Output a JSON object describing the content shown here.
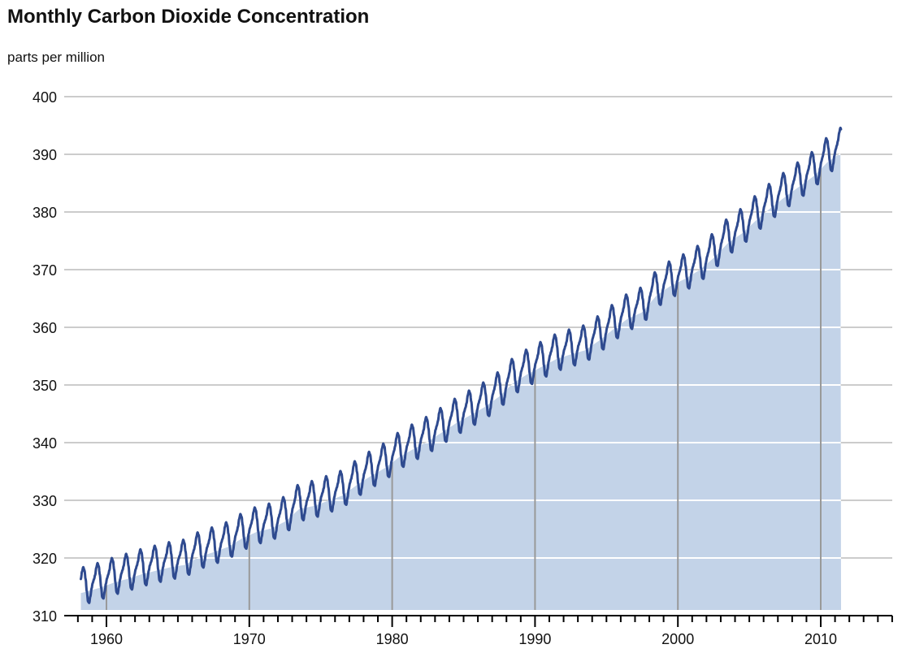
{
  "chart_data": {
    "type": "area",
    "title": "Monthly Carbon Dioxide Concentration",
    "subtitle": "parts per million",
    "xlabel": "",
    "ylabel": "",
    "xlim": [
      1955.2,
      2016.0
    ],
    "ylim": [
      310,
      400
    ],
    "yticks": [
      310,
      320,
      330,
      340,
      350,
      360,
      370,
      380,
      390,
      400
    ],
    "ytick_labels": [
      "310",
      "320",
      "330",
      "340",
      "350",
      "360",
      "370",
      "380",
      "390",
      "400"
    ],
    "xticks_major": [
      1960,
      1970,
      1980,
      1990,
      2000,
      2010
    ],
    "xtick_labels": [
      "1960",
      "1970",
      "1980",
      "1990",
      "2000",
      "2010"
    ],
    "xticks_minor_step": 1,
    "grid": true,
    "legend": "none",
    "colors": {
      "line": "#2e4a8f",
      "area": "#c3d3e8",
      "gridline_outside": "#cccccc",
      "gridline_inside": "#ffffff",
      "vertical_gridline": "#999999",
      "axis": "#000000"
    },
    "series": [
      {
        "annual_means": {
          "x": [
            1958,
            1959,
            1960,
            1961,
            1962,
            1963,
            1964,
            1965,
            1966,
            1967,
            1968,
            1969,
            1970,
            1971,
            1972,
            1973,
            1974,
            1975,
            1976,
            1977,
            1978,
            1979,
            1980,
            1981,
            1982,
            1983,
            1984,
            1985,
            1986,
            1987,
            1988,
            1989,
            1990,
            1991,
            1992,
            1993,
            1994,
            1995,
            1996,
            1997,
            1998,
            1999,
            2000,
            2001,
            2002,
            2003,
            2004,
            2005,
            2006,
            2007,
            2008,
            2009,
            2010,
            2011
          ],
          "y": [
            315.3,
            316.0,
            316.9,
            317.6,
            318.4,
            319.0,
            319.6,
            320.0,
            321.4,
            322.2,
            323.1,
            324.6,
            325.7,
            326.3,
            327.5,
            329.7,
            330.2,
            331.1,
            332.0,
            333.8,
            335.4,
            336.8,
            338.7,
            340.1,
            341.4,
            343.0,
            344.6,
            346.0,
            347.4,
            349.2,
            351.6,
            353.1,
            354.4,
            355.7,
            356.5,
            357.2,
            358.9,
            360.9,
            362.7,
            363.8,
            366.7,
            368.4,
            369.6,
            371.1,
            373.2,
            375.8,
            377.5,
            379.8,
            381.9,
            383.8,
            385.6,
            387.4,
            389.9,
            391.6
          ]
        },
        "seasonal_amplitude": 3.2,
        "monthly_offsets": [
          0.0,
          0.55,
          1.25,
          2.5,
          3.2,
          2.6,
          1.0,
          -1.2,
          -3.0,
          -3.3,
          -2.2,
          -0.9
        ],
        "first_month": 1958.21,
        "last_month": 2011.42
      }
    ]
  }
}
